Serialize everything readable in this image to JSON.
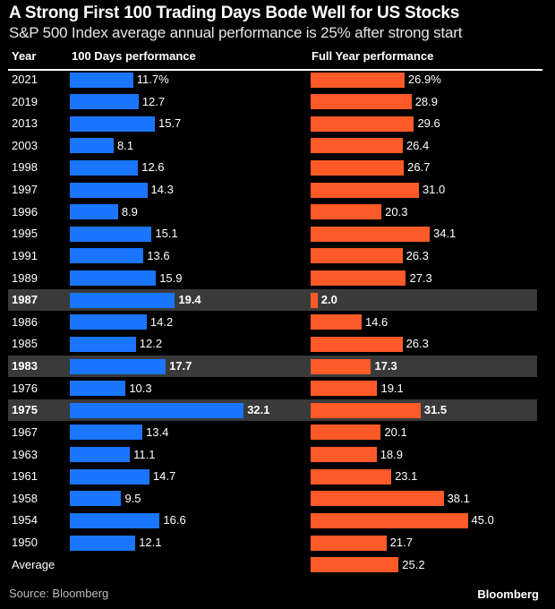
{
  "header": {
    "title": "A Strong First 100 Trading Days Bode Well for US Stocks",
    "subtitle": "S&P 500 Index average annual performance is 25% after strong start"
  },
  "footer": {
    "source": "Source: Bloomberg",
    "brand": "Bloomberg"
  },
  "colors": {
    "background": "#000000",
    "hundred_days_bar": "#1a75ff",
    "full_year_bar": "#ff5a27",
    "highlight_row": "#3a3a3a"
  },
  "chart_data": {
    "type": "bar",
    "orientation": "horizontal",
    "title": "A Strong First 100 Trading Days Bode Well for US Stocks",
    "subtitle": "S&P 500 Index average annual performance is 25% after strong start",
    "columns": [
      "Year",
      "100 Days performance",
      "Full Year performance"
    ],
    "unit": "%",
    "categories": [
      "2021",
      "2019",
      "2013",
      "2003",
      "1998",
      "1997",
      "1996",
      "1995",
      "1991",
      "1989",
      "1987",
      "1986",
      "1985",
      "1983",
      "1976",
      "1975",
      "1967",
      "1963",
      "1961",
      "1958",
      "1954",
      "1950",
      "Average"
    ],
    "highlighted": [
      "1987",
      "1983",
      "1975"
    ],
    "series": [
      {
        "name": "100 Days performance",
        "values": [
          11.7,
          12.7,
          15.7,
          8.1,
          12.6,
          14.3,
          8.9,
          15.1,
          13.6,
          15.9,
          19.4,
          14.2,
          12.2,
          17.7,
          10.3,
          32.1,
          13.4,
          11.1,
          14.7,
          9.5,
          16.6,
          12.1,
          null
        ],
        "labels": [
          "11.7%",
          "12.7",
          "15.7",
          "8.1",
          "12.6",
          "14.3",
          "8.9",
          "15.1",
          "13.6",
          "15.9",
          "19.4",
          "14.2",
          "12.2",
          "17.7",
          "10.3",
          "32.1",
          "13.4",
          "11.1",
          "14.7",
          "9.5",
          "16.6",
          "12.1",
          ""
        ]
      },
      {
        "name": "Full Year performance",
        "values": [
          26.9,
          28.9,
          29.6,
          26.4,
          26.7,
          31.0,
          20.3,
          34.1,
          26.3,
          27.3,
          2.0,
          14.6,
          26.3,
          17.3,
          19.1,
          31.5,
          20.1,
          18.9,
          23.1,
          38.1,
          45.0,
          21.7,
          25.2
        ],
        "labels": [
          "26.9%",
          "28.9",
          "29.6",
          "26.4",
          "26.7",
          "31.0",
          "20.3",
          "34.1",
          "26.3",
          "27.3",
          "2.0",
          "14.6",
          "26.3",
          "17.3",
          "19.1",
          "31.5",
          "20.1",
          "18.9",
          "23.1",
          "38.1",
          "45.0",
          "21.7",
          "25.2"
        ]
      }
    ],
    "source": "Source: Bloomberg",
    "grid": false,
    "legend": "none"
  }
}
